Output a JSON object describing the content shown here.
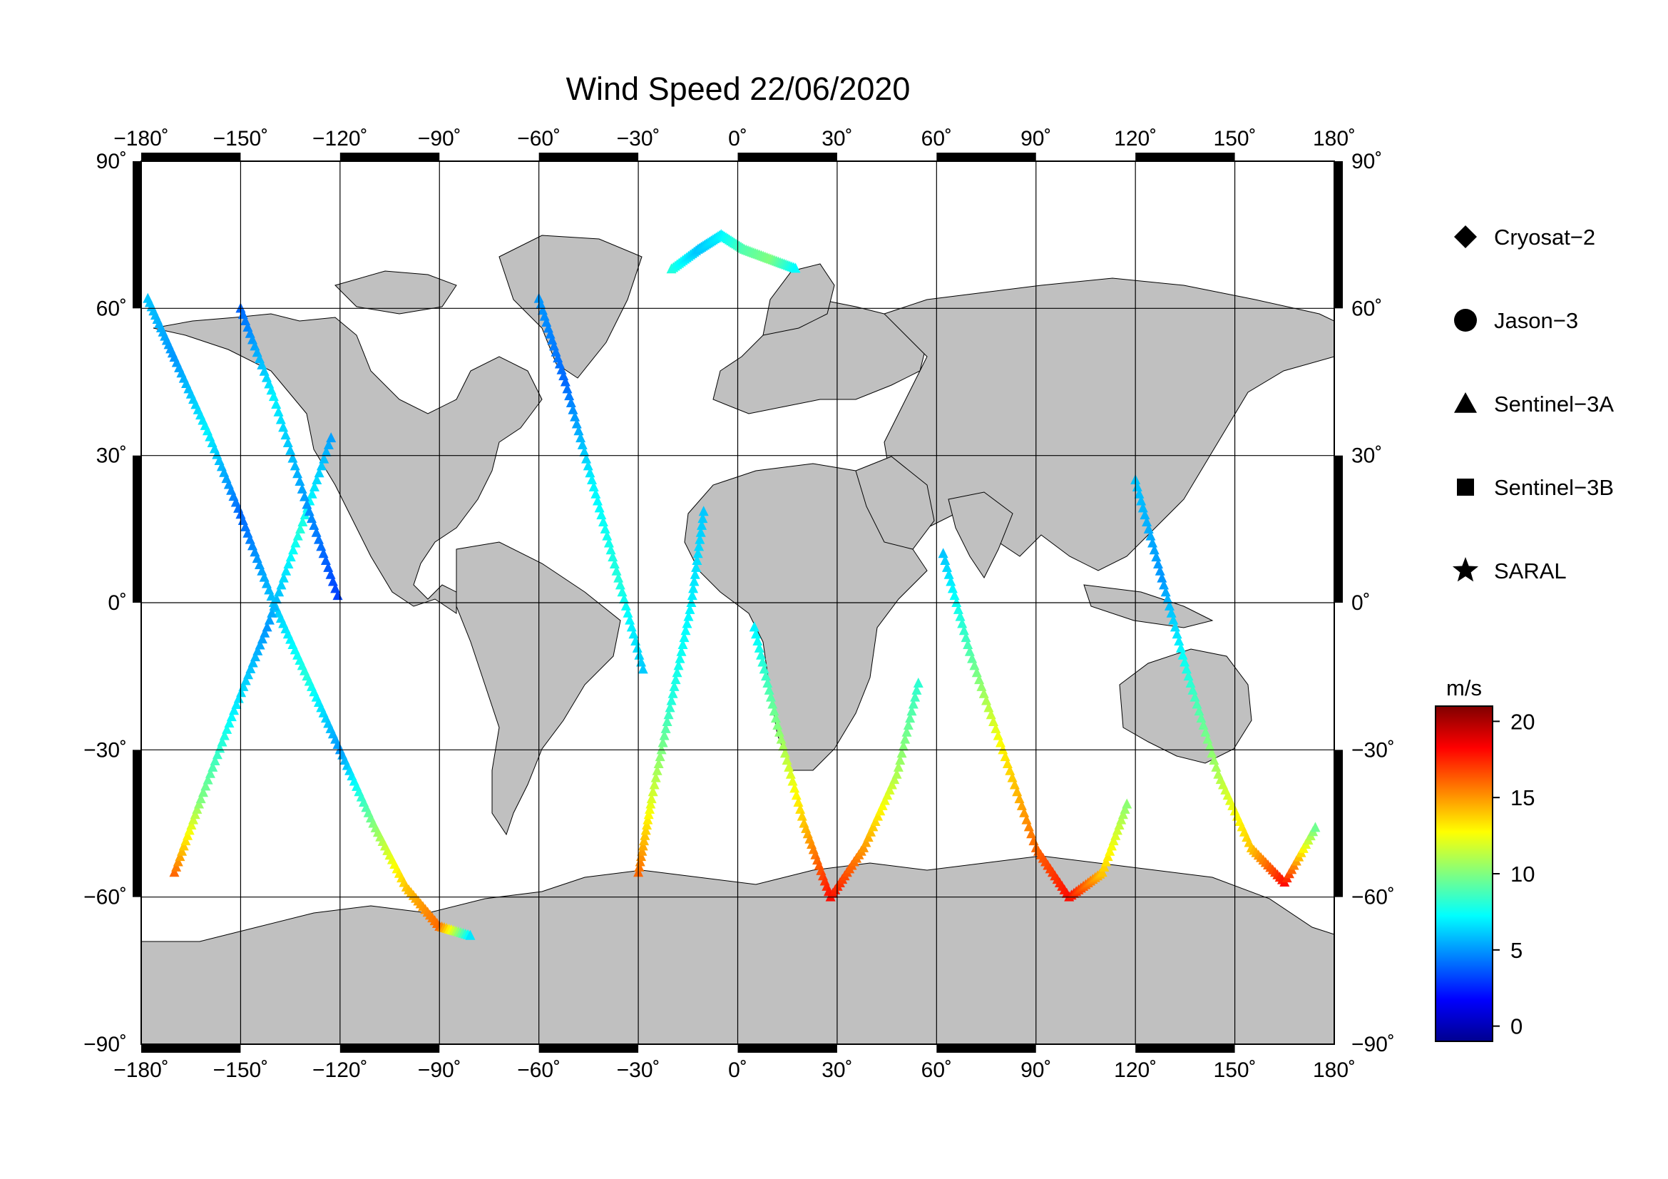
{
  "title": "Wind Speed 22/06/2020",
  "lon_ticks": [
    "−180˚",
    "−150˚",
    "−120˚",
    "−90˚",
    "−60˚",
    "−30˚",
    "0˚",
    "30˚",
    "60˚",
    "90˚",
    "120˚",
    "150˚",
    "180˚"
  ],
  "lat_ticks_left": [
    "90˚",
    "60˚",
    "30˚",
    "0˚",
    "−30˚",
    "−60˚",
    "−90˚"
  ],
  "lat_ticks_right": [
    "90˚",
    "60˚",
    "30˚",
    "0˚",
    "−30˚",
    "−60˚",
    "−90˚"
  ],
  "legend": [
    {
      "marker": "diamond",
      "label": "Cryosat−2"
    },
    {
      "marker": "circle",
      "label": "Jason−3"
    },
    {
      "marker": "triangle",
      "label": "Sentinel−3A"
    },
    {
      "marker": "square",
      "label": "Sentinel−3B"
    },
    {
      "marker": "star",
      "label": "SARAL"
    }
  ],
  "colorbar": {
    "unit": "m/s",
    "range": [
      -1,
      21
    ],
    "ticks": [
      "0",
      "5",
      "10",
      "15",
      "20"
    ],
    "tick_values": [
      0,
      5,
      10,
      15,
      20
    ]
  },
  "colors": {
    "land": "#c0c0c0",
    "ocean": "#ffffff",
    "grid": "#000000"
  },
  "chart_data": {
    "type": "scatter",
    "projection": "equirectangular",
    "xlim": [
      -180,
      180
    ],
    "ylim": [
      -90,
      90
    ],
    "tracks": [
      {
        "lon": [
          -178,
          -170,
          -160,
          -150,
          -140,
          -130,
          -120,
          -110,
          -100,
          -90,
          -80
        ],
        "lat": [
          62,
          50,
          35,
          18,
          0,
          -15,
          -30,
          -45,
          -58,
          -66,
          -68
        ],
        "ws": [
          6,
          5,
          7,
          4,
          6,
          8,
          5,
          10,
          14,
          16,
          6
        ]
      },
      {
        "lon": [
          -170,
          -162,
          -152,
          -142,
          -132,
          -122
        ],
        "lat": [
          -55,
          -40,
          -22,
          -5,
          15,
          35
        ],
        "ws": [
          16,
          10,
          7,
          5,
          8,
          5
        ]
      },
      {
        "lon": [
          -150,
          -140,
          -130,
          -120
        ],
        "lat": [
          60,
          42,
          20,
          0
        ],
        "ws": [
          4,
          7,
          5,
          3
        ]
      },
      {
        "lon": [
          -60,
          -52,
          -44,
          -36,
          -28
        ],
        "lat": [
          62,
          45,
          25,
          5,
          -15
        ],
        "ws": [
          5,
          4,
          7,
          8,
          6
        ]
      },
      {
        "lon": [
          -30,
          -26,
          -20,
          -14,
          -10
        ],
        "lat": [
          -55,
          -40,
          -20,
          0,
          20
        ],
        "ws": [
          16,
          12,
          8,
          7,
          6
        ]
      },
      {
        "lon": [
          5,
          12,
          20,
          28,
          38,
          48,
          55
        ],
        "lat": [
          -5,
          -25,
          -45,
          -60,
          -50,
          -35,
          -15
        ],
        "ws": [
          7,
          10,
          14,
          18,
          15,
          11,
          8
        ]
      },
      {
        "lon": [
          62,
          70,
          80,
          90,
          100,
          110,
          118
        ],
        "lat": [
          10,
          -10,
          -30,
          -50,
          -60,
          -55,
          -40
        ],
        "ws": [
          6,
          9,
          13,
          16,
          18,
          14,
          10
        ]
      },
      {
        "lon": [
          120,
          128,
          136,
          145,
          155,
          165,
          175
        ],
        "lat": [
          25,
          5,
          -15,
          -35,
          -50,
          -57,
          -45
        ],
        "ws": [
          6,
          5,
          8,
          11,
          14,
          18,
          9
        ]
      },
      {
        "lon": [
          -20,
          -12,
          -5,
          2,
          10,
          18
        ],
        "lat": [
          68,
          72,
          75,
          72,
          70,
          68
        ],
        "ws": [
          8,
          6,
          7,
          9,
          10,
          7
        ]
      }
    ]
  }
}
